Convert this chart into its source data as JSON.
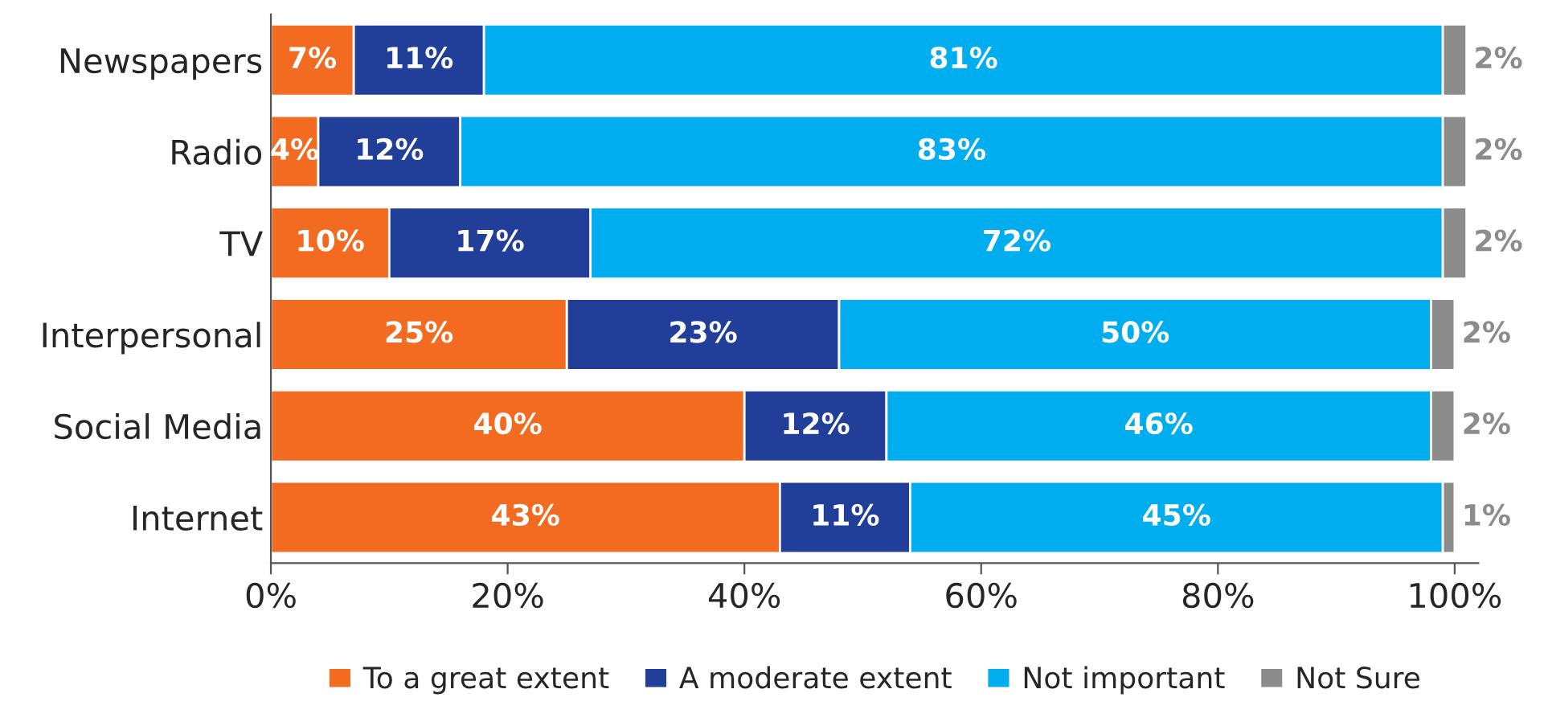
{
  "chart_data": {
    "type": "bar",
    "orientation": "horizontal",
    "stacked": true,
    "categories": [
      "Newspapers",
      "Radio",
      "TV",
      "Interpersonal",
      "Social Media",
      "Internet"
    ],
    "series": [
      {
        "name": "To a great extent",
        "color": "#f26b21",
        "values": [
          7,
          4,
          10,
          25,
          40,
          43
        ],
        "value_labels": [
          "7%",
          "4%",
          "10%",
          "25%",
          "40%",
          "43%"
        ]
      },
      {
        "name": "A moderate extent",
        "color": "#213f99",
        "values": [
          11,
          12,
          17,
          23,
          12,
          11
        ],
        "value_labels": [
          "11%",
          "12%",
          "17%",
          "23%",
          "12%",
          "11%"
        ]
      },
      {
        "name": "Not important",
        "color": "#00aeef",
        "values": [
          81,
          83,
          72,
          50,
          46,
          45
        ],
        "value_labels": [
          "81%",
          "83%",
          "72%",
          "50%",
          "46%",
          "45%"
        ]
      },
      {
        "name": "Not Sure",
        "color": "#8c8c8c",
        "values": [
          2,
          2,
          2,
          2,
          2,
          1
        ],
        "value_labels": [
          "2%",
          "2%",
          "2%",
          "2%",
          "2%",
          "1%"
        ]
      }
    ],
    "xlim": [
      0,
      102
    ],
    "xticks": [
      {
        "value": 0,
        "label": "0%"
      },
      {
        "value": 20,
        "label": "20%"
      },
      {
        "value": 40,
        "label": "40%"
      },
      {
        "value": 60,
        "label": "60%"
      },
      {
        "value": 80,
        "label": "80%"
      },
      {
        "value": 100,
        "label": "100%"
      }
    ],
    "grid": false,
    "legend": "bottom"
  }
}
